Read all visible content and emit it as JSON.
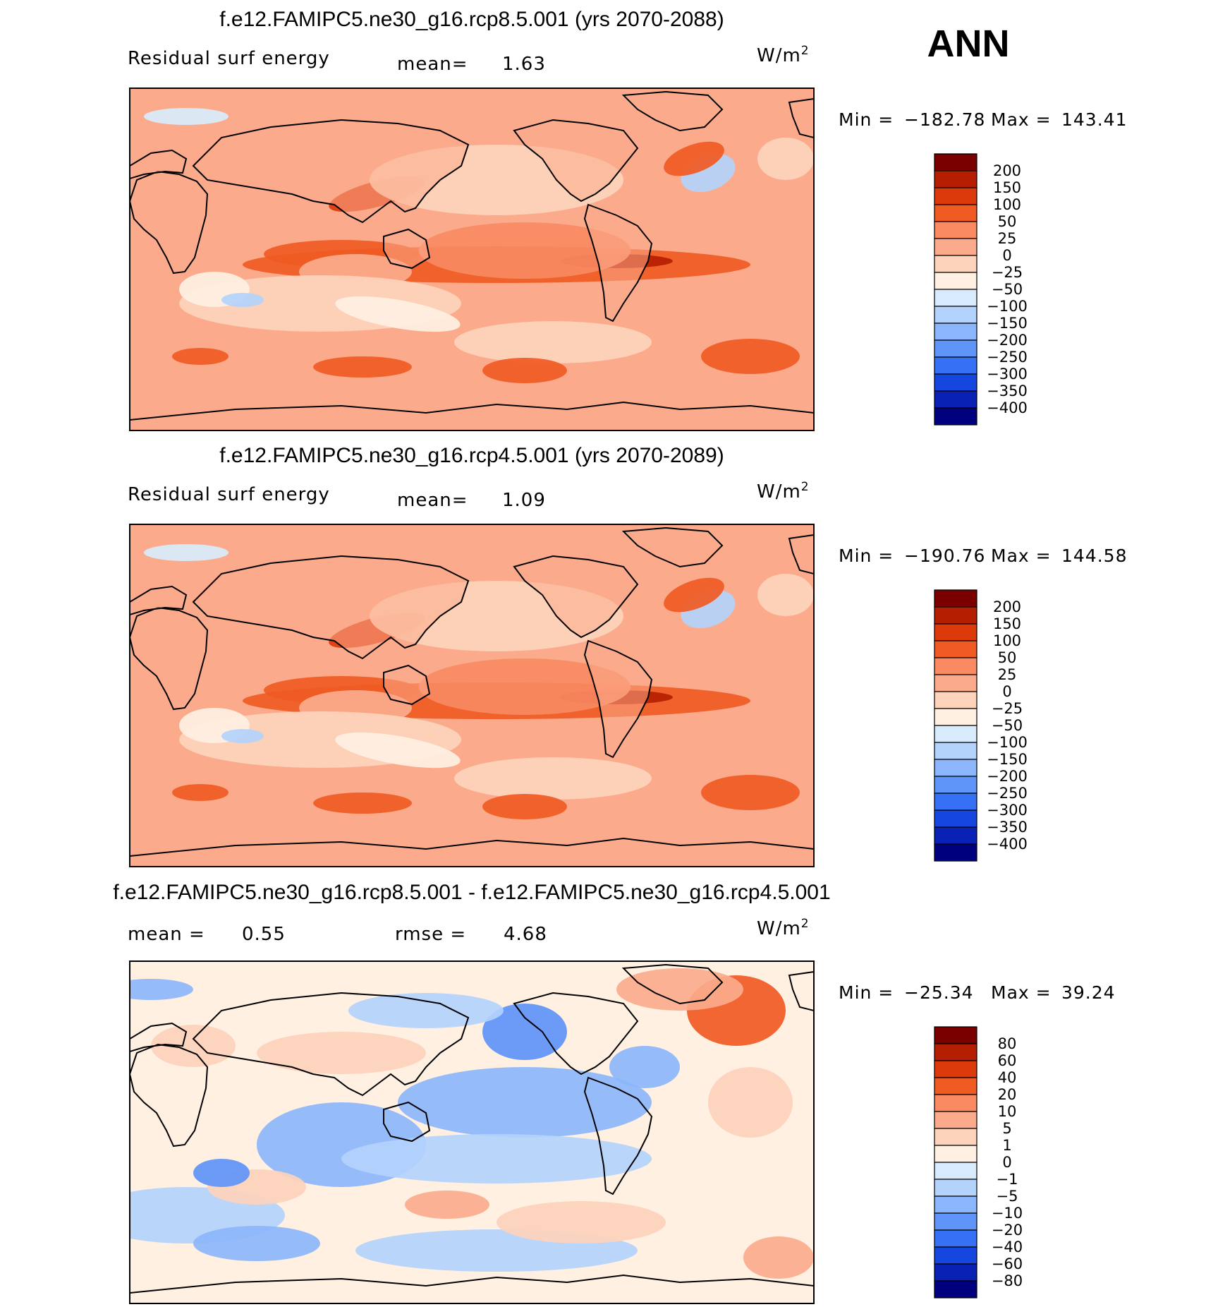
{
  "season_label": "ANN",
  "panels": [
    {
      "title": "f.e12.FAMIPC5.ne30_g16.rcp8.5.001 (yrs 2070-2088)",
      "left_label": "Residual surf energy",
      "stat1_label": "mean=",
      "stat1_value": "1.63",
      "stat2_label": "",
      "stat2_value": "",
      "units": "W/m",
      "units_sup": "2",
      "min_label": "Min = ",
      "min_value": "−182.78",
      "max_label": "Max = ",
      "max_value": "143.41",
      "palette": "full",
      "levels": [
        "200",
        "150",
        "100",
        "50",
        "25",
        "0",
        "−25",
        "−50",
        "−100",
        "−150",
        "−200",
        "−250",
        "−300",
        "−350",
        "−400"
      ],
      "colors": [
        "#7a0000",
        "#b51e00",
        "#dc3a0a",
        "#f05a23",
        "#f98a62",
        "#fbab8c",
        "#fdd3bc",
        "#fff0e2",
        "#d8ebfc",
        "#b3d2fc",
        "#8cb6fb",
        "#5f94f8",
        "#3570f5",
        "#1547e0",
        "#0820b4",
        "#00007e"
      ]
    },
    {
      "title": "f.e12.FAMIPC5.ne30_g16.rcp4.5.001 (yrs 2070-2089)",
      "left_label": "Residual surf energy",
      "stat1_label": "mean=",
      "stat1_value": "1.09",
      "stat2_label": "",
      "stat2_value": "",
      "units": "W/m",
      "units_sup": "2",
      "min_label": "Min = ",
      "min_value": "−190.76",
      "max_label": "Max = ",
      "max_value": "144.58",
      "palette": "full",
      "levels": [
        "200",
        "150",
        "100",
        "50",
        "25",
        "0",
        "−25",
        "−50",
        "−100",
        "−150",
        "−200",
        "−250",
        "−300",
        "−350",
        "−400"
      ],
      "colors": [
        "#7a0000",
        "#b51e00",
        "#dc3a0a",
        "#f05a23",
        "#f98a62",
        "#fbab8c",
        "#fdd3bc",
        "#fff0e2",
        "#d8ebfc",
        "#b3d2fc",
        "#8cb6fb",
        "#5f94f8",
        "#3570f5",
        "#1547e0",
        "#0820b4",
        "#00007e"
      ]
    },
    {
      "title": "f.e12.FAMIPC5.ne30_g16.rcp8.5.001 - f.e12.FAMIPC5.ne30_g16.rcp4.5.001",
      "left_label": "",
      "stat1_label": "mean =",
      "stat1_value": "0.55",
      "stat2_label": "rmse =",
      "stat2_value": "4.68",
      "units": "W/m",
      "units_sup": "2",
      "min_label": "Min = ",
      "min_value": "−25.34",
      "max_label": "Max = ",
      "max_value": "39.24",
      "palette": "diff",
      "levels": [
        "80",
        "60",
        "40",
        "20",
        "10",
        "5",
        "1",
        "0",
        "−1",
        "−5",
        "−10",
        "−20",
        "−40",
        "−60",
        "−80"
      ],
      "colors": [
        "#7a0000",
        "#b51e00",
        "#dc3a0a",
        "#f05a23",
        "#f98a62",
        "#fbab8c",
        "#fdd3bc",
        "#fff0e2",
        "#d8ebfc",
        "#b3d2fc",
        "#8cb6fb",
        "#5f94f8",
        "#3570f5",
        "#1547e0",
        "#0820b4",
        "#00007e"
      ]
    }
  ]
}
